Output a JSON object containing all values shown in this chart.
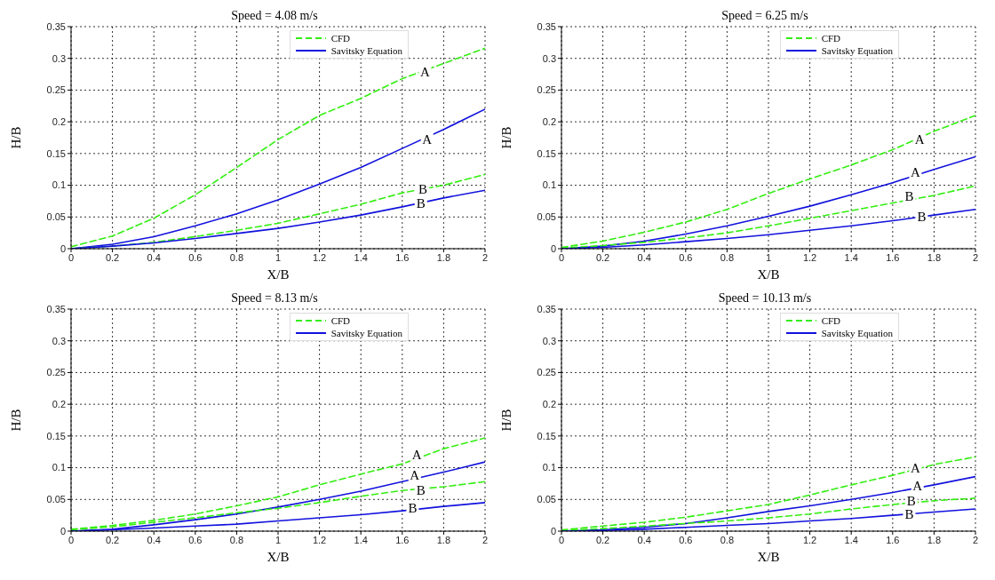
{
  "chart_data": [
    {
      "type": "line",
      "title": "Speed = 4.08 m/s",
      "xlabel": "X/B",
      "ylabel": "H/B",
      "x": [
        0,
        0.2,
        0.4,
        0.6,
        0.8,
        1,
        1.2,
        1.4,
        1.6,
        1.8,
        2
      ],
      "xlim": [
        0,
        2
      ],
      "xticks": [
        0,
        0.2,
        0.4,
        0.6,
        0.8,
        1,
        1.2,
        1.4,
        1.6,
        1.8,
        2
      ],
      "ylim": [
        0,
        0.35
      ],
      "yticks": [
        0,
        0.05,
        0.1,
        0.15,
        0.2,
        0.25,
        0.3,
        0.35
      ],
      "grid": true,
      "legend": "top right",
      "marker": "none",
      "series": [
        {
          "name": "CFD",
          "color": "#33ee11",
          "line_style": "dashed",
          "values": [
            0.003,
            0.02,
            0.048,
            0.085,
            0.128,
            0.172,
            0.21,
            0.237,
            0.268,
            0.292,
            0.316
          ]
        },
        {
          "name": "Savitsky Equation",
          "color": "#1111dd",
          "line_style": "solid",
          "values": [
            0,
            0.007,
            0.019,
            0.036,
            0.055,
            0.077,
            0.102,
            0.128,
            0.158,
            0.188,
            0.22
          ]
        },
        {
          "color": "#33ee11",
          "line_style": "dashed",
          "values": [
            0,
            0.004,
            0.01,
            0.019,
            0.029,
            0.04,
            0.055,
            0.07,
            0.088,
            0.1,
            0.117
          ]
        },
        {
          "color": "#1111dd",
          "line_style": "solid",
          "values": [
            0,
            0.004,
            0.009,
            0.016,
            0.024,
            0.032,
            0.042,
            0.053,
            0.066,
            0.08,
            0.092
          ]
        }
      ],
      "annotations": [
        {
          "text": "A",
          "x": 1.71,
          "y": 0.278
        },
        {
          "text": "A",
          "x": 1.72,
          "y": 0.172
        },
        {
          "text": "B",
          "x": 1.7,
          "y": 0.094
        },
        {
          "text": "B",
          "x": 1.69,
          "y": 0.072
        }
      ]
    },
    {
      "type": "line",
      "title": "Speed = 6.25 m/s",
      "xlabel": "X/B",
      "ylabel": "H/B",
      "x": [
        0,
        0.2,
        0.4,
        0.6,
        0.8,
        1,
        1.2,
        1.4,
        1.6,
        1.8,
        2
      ],
      "xlim": [
        0,
        2
      ],
      "xticks": [
        0,
        0.2,
        0.4,
        0.6,
        0.8,
        1,
        1.2,
        1.4,
        1.6,
        1.8,
        2
      ],
      "ylim": [
        0,
        0.35
      ],
      "yticks": [
        0,
        0.05,
        0.1,
        0.15,
        0.2,
        0.25,
        0.3,
        0.35
      ],
      "grid": true,
      "legend": "top right",
      "marker": "none",
      "series": [
        {
          "name": "CFD",
          "color": "#33ee11",
          "line_style": "dashed",
          "values": [
            0.002,
            0.012,
            0.026,
            0.042,
            0.062,
            0.087,
            0.11,
            0.132,
            0.156,
            0.185,
            0.21
          ]
        },
        {
          "name": "Savitsky Equation",
          "color": "#1111dd",
          "line_style": "solid",
          "values": [
            0,
            0.004,
            0.012,
            0.023,
            0.036,
            0.051,
            0.067,
            0.085,
            0.104,
            0.125,
            0.145
          ]
        },
        {
          "color": "#33ee11",
          "line_style": "dashed",
          "values": [
            0.001,
            0.005,
            0.01,
            0.017,
            0.025,
            0.036,
            0.048,
            0.06,
            0.072,
            0.084,
            0.099
          ]
        },
        {
          "color": "#1111dd",
          "line_style": "solid",
          "values": [
            0,
            0.002,
            0.006,
            0.011,
            0.016,
            0.022,
            0.029,
            0.036,
            0.044,
            0.053,
            0.062
          ]
        }
      ],
      "annotations": [
        {
          "text": "A",
          "x": 1.73,
          "y": 0.172
        },
        {
          "text": "A",
          "x": 1.71,
          "y": 0.12
        },
        {
          "text": "B",
          "x": 1.68,
          "y": 0.082
        },
        {
          "text": "B",
          "x": 1.74,
          "y": 0.051
        }
      ]
    },
    {
      "type": "line",
      "title": "Speed = 8.13 m/s",
      "xlabel": "X/B",
      "ylabel": "H/B",
      "x": [
        0,
        0.2,
        0.4,
        0.6,
        0.8,
        1,
        1.2,
        1.4,
        1.6,
        1.8,
        2
      ],
      "xlim": [
        0,
        2
      ],
      "xticks": [
        0,
        0.2,
        0.4,
        0.6,
        0.8,
        1,
        1.2,
        1.4,
        1.6,
        1.8,
        2
      ],
      "ylim": [
        0,
        0.35
      ],
      "yticks": [
        0,
        0.05,
        0.1,
        0.15,
        0.2,
        0.25,
        0.3,
        0.35
      ],
      "grid": true,
      "legend": "top right",
      "marker": "none",
      "series": [
        {
          "name": "CFD",
          "color": "#33ee11",
          "line_style": "dashed",
          "values": [
            0.003,
            0.009,
            0.017,
            0.027,
            0.04,
            0.054,
            0.073,
            0.09,
            0.106,
            0.13,
            0.147
          ]
        },
        {
          "name": "Savitsky Equation",
          "color": "#1111dd",
          "line_style": "solid",
          "values": [
            0,
            0.003,
            0.01,
            0.018,
            0.027,
            0.038,
            0.05,
            0.063,
            0.078,
            0.093,
            0.109
          ]
        },
        {
          "color": "#33ee11",
          "line_style": "dashed",
          "values": [
            0.002,
            0.007,
            0.014,
            0.021,
            0.029,
            0.036,
            0.045,
            0.055,
            0.064,
            0.07,
            0.078
          ]
        },
        {
          "color": "#1111dd",
          "line_style": "solid",
          "values": [
            0,
            0.002,
            0.005,
            0.008,
            0.011,
            0.016,
            0.021,
            0.026,
            0.032,
            0.039,
            0.045
          ]
        }
      ],
      "annotations": [
        {
          "text": "A",
          "x": 1.67,
          "y": 0.12
        },
        {
          "text": "A",
          "x": 1.66,
          "y": 0.088
        },
        {
          "text": "B",
          "x": 1.69,
          "y": 0.065
        },
        {
          "text": "B",
          "x": 1.65,
          "y": 0.036
        }
      ]
    },
    {
      "type": "line",
      "title": "Speed = 10.13 m/s",
      "xlabel": "X/B",
      "ylabel": "H/B",
      "x": [
        0,
        0.2,
        0.4,
        0.6,
        0.8,
        1,
        1.2,
        1.4,
        1.6,
        1.8,
        2
      ],
      "xlim": [
        0,
        2
      ],
      "xticks": [
        0,
        0.2,
        0.4,
        0.6,
        0.8,
        1,
        1.2,
        1.4,
        1.6,
        1.8,
        2
      ],
      "ylim": [
        0,
        0.35
      ],
      "yticks": [
        0,
        0.05,
        0.1,
        0.15,
        0.2,
        0.25,
        0.3,
        0.35
      ],
      "grid": true,
      "legend": "top right",
      "marker": "none",
      "series": [
        {
          "name": "CFD",
          "color": "#33ee11",
          "line_style": "dashed",
          "values": [
            0.002,
            0.008,
            0.014,
            0.022,
            0.032,
            0.042,
            0.057,
            0.073,
            0.088,
            0.105,
            0.117
          ]
        },
        {
          "name": "Savitsky Equation",
          "color": "#1111dd",
          "line_style": "solid",
          "values": [
            0,
            0.002,
            0.006,
            0.012,
            0.021,
            0.031,
            0.04,
            0.05,
            0.061,
            0.073,
            0.086
          ]
        },
        {
          "color": "#33ee11",
          "line_style": "dashed",
          "values": [
            0.001,
            0.004,
            0.008,
            0.012,
            0.016,
            0.021,
            0.027,
            0.035,
            0.042,
            0.048,
            0.052
          ]
        },
        {
          "color": "#1111dd",
          "line_style": "solid",
          "values": [
            0,
            0.001,
            0.003,
            0.006,
            0.009,
            0.012,
            0.016,
            0.02,
            0.025,
            0.03,
            0.035
          ]
        }
      ],
      "annotations": [
        {
          "text": "A",
          "x": 1.71,
          "y": 0.1
        },
        {
          "text": "A",
          "x": 1.72,
          "y": 0.072
        },
        {
          "text": "B",
          "x": 1.69,
          "y": 0.047
        },
        {
          "text": "B",
          "x": 1.68,
          "y": 0.026
        }
      ]
    }
  ]
}
